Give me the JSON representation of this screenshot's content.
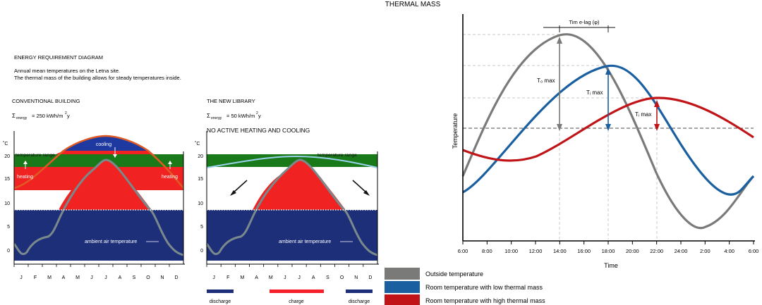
{
  "page_title": "THERMAL MASS",
  "intro": {
    "heading": "ENERGY REQUIREMENT DIAGRAM",
    "line1": "Annual mean temperatures on the Letna site.",
    "line2": "The thermal mass of the building allows for steady temperatures inside."
  },
  "left_panel": {
    "title": "CONVENTIONAL BUILDING",
    "energy_symbol": "Σ",
    "energy_sub": "energy",
    "energy_value": "= 250 kWh/m",
    "energy_sup": "2",
    "energy_unit_tail": "y",
    "band_label": "temperature range",
    "cooling_label": "cooling",
    "heating_left": "heating",
    "heating_right": "heating",
    "ambient_label": "ambient air temperature",
    "unit": "˚C"
  },
  "mid_panel": {
    "title": "THE NEW LIBRARY",
    "energy_symbol": "Σ",
    "energy_sub": "energy",
    "energy_value": "= 50 kWh/m",
    "energy_sup": "2",
    "energy_unit_tail": "y",
    "subtitle": "NO ACTIVE HEATING AND COOLING",
    "band_label": "temperature range",
    "ambient_label": "ambient air temperature",
    "unit": "˚C",
    "legend": [
      "discharge",
      "charge",
      "discharge"
    ],
    "colors": {
      "discharge": "#1e2f7a",
      "charge": "#f5202a"
    }
  },
  "annual_axis": {
    "y_ticks": [
      "20",
      "15",
      "10",
      "5",
      "0"
    ],
    "months": [
      "J",
      "F",
      "M",
      "A",
      "M",
      "J",
      "J",
      "A",
      "S",
      "O",
      "N",
      "D"
    ]
  },
  "thermal_chart": {
    "ylabel": "Temperature",
    "xlabel": "Time",
    "x_ticks": [
      "6:00",
      "8:00",
      "10:00",
      "12:00",
      "14:00",
      "16:00",
      "18:00",
      "20:00",
      "22:00",
      "24:00",
      "2:00",
      "4:00",
      "6:00"
    ],
    "lag_label": "Tim e-lag (φ)",
    "to_label": "T₀ max",
    "ti_label_1": "Tᵢ max",
    "ti_label_2": "Tᵢ max",
    "legend": [
      {
        "label": "Outside temperature",
        "color": "#7a7a78"
      },
      {
        "label": "Room temperature with low thermal mass",
        "color": "#1a5fa0"
      },
      {
        "label": "Room temperature with high thermal mass",
        "color": "#c01418"
      }
    ]
  }
}
